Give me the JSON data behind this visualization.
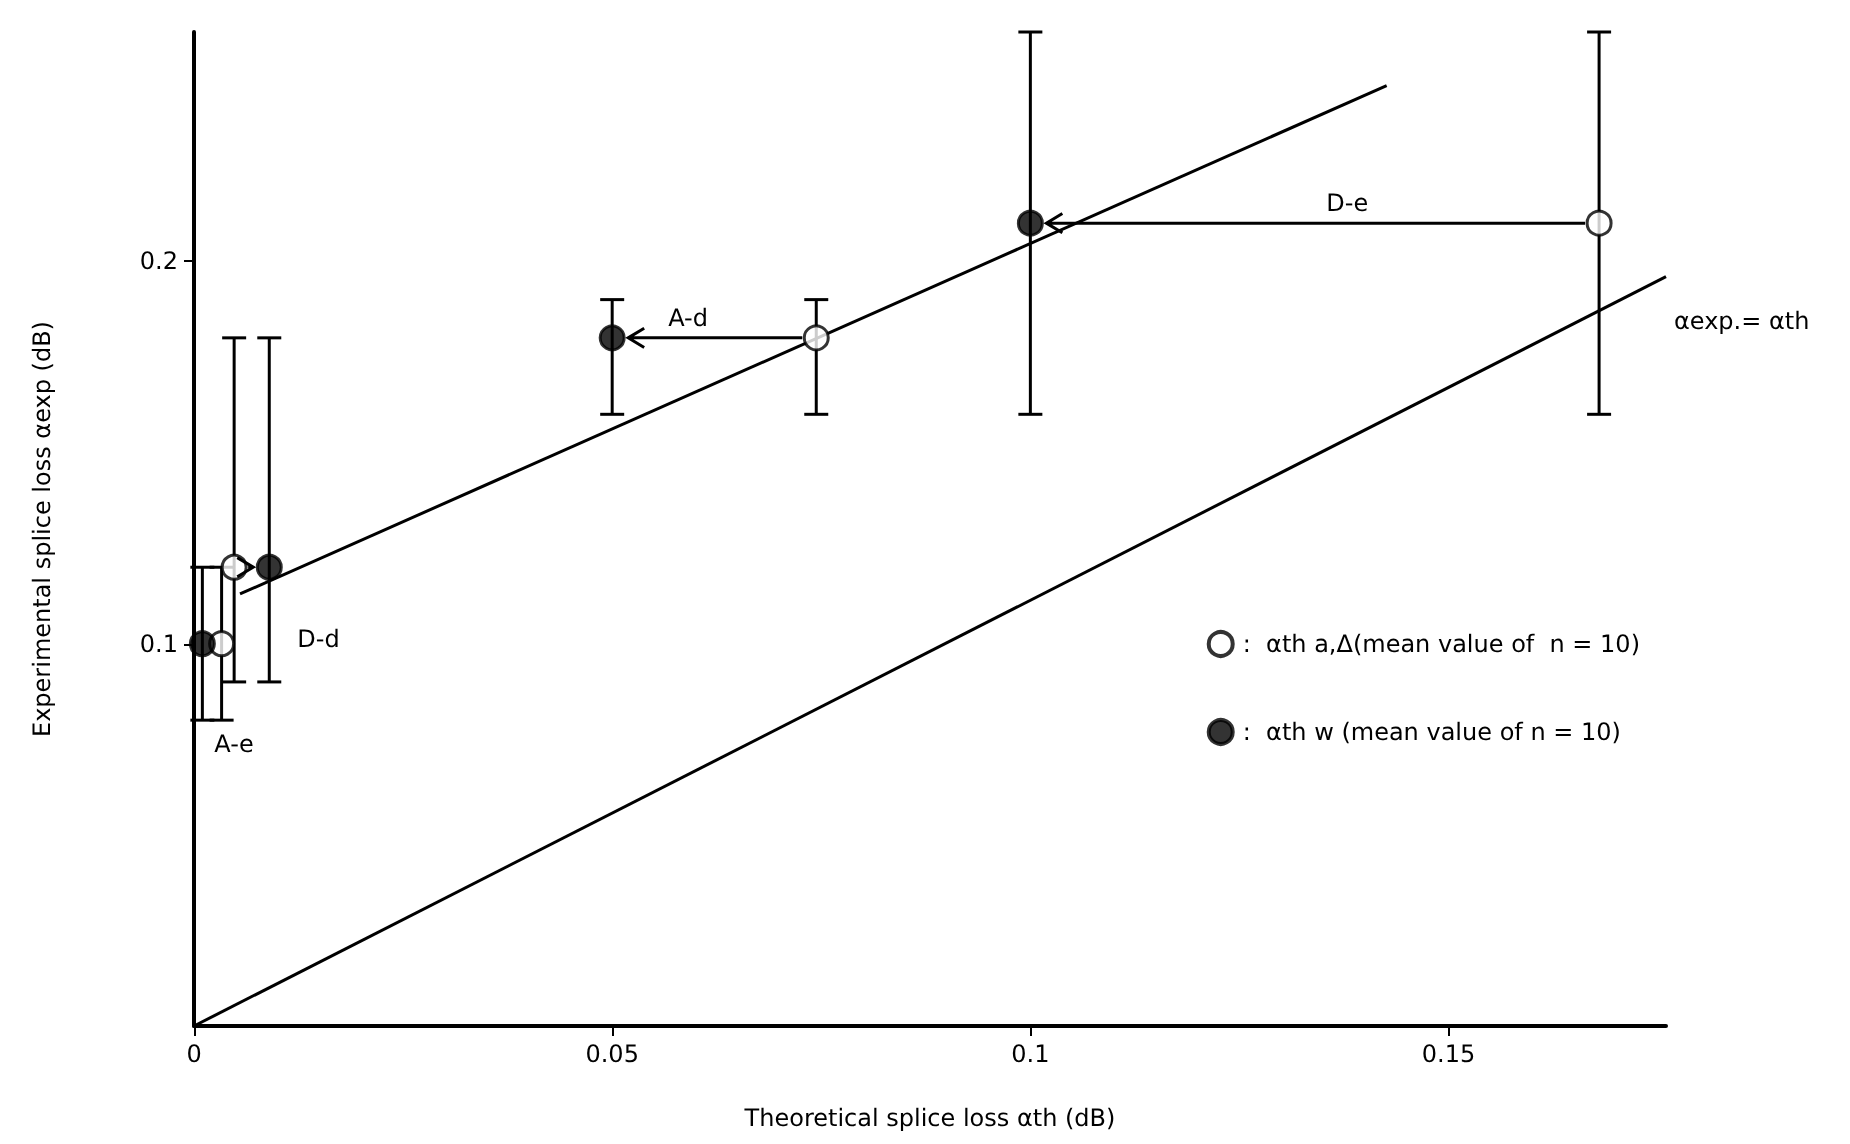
{
  "chart_data": {
    "type": "scatter",
    "xlabel": "Theoretical splice loss αth (dB)",
    "ylabel": "Experimental splice loss αexp (dB)",
    "xlim": [
      0,
      0.176
    ],
    "xticks": [
      0,
      0.05,
      0.1,
      0.15
    ],
    "ylim": [
      0,
      0.26
    ],
    "yticks": [
      0.1,
      0.2
    ],
    "grid": false,
    "legend": "right",
    "marker": "circle",
    "series": [
      {
        "name": ":  αth a,Δ(mean value of  n = 10)",
        "color": "#ffffff",
        "x": [
          0.0033,
          0.0048,
          0.0744,
          0.168
        ],
        "values": [
          0.1,
          0.12,
          0.18,
          0.21
        ],
        "errors": [
          [
            0.08,
            0.12
          ],
          [
            0.09,
            0.18
          ],
          [
            0.16,
            0.19
          ],
          [
            0.16,
            0.26
          ]
        ]
      },
      {
        "name": ":  αth w (mean value of n = 10)",
        "color": "#000000",
        "x": [
          0.001,
          0.009,
          0.05,
          0.1
        ],
        "values": [
          0.1,
          0.12,
          0.18,
          0.21
        ],
        "errors": [
          [
            0.08,
            0.12
          ],
          [
            0.09,
            0.18
          ],
          [
            0.16,
            0.19
          ],
          [
            0.16,
            0.26
          ]
        ]
      },
      {
        "type": "line",
        "color": "#000000",
        "marker": "none",
        "x": [
          0.0055,
          0.1426
        ],
        "values": [
          0.113,
          0.246
        ]
      },
      {
        "type": "line",
        "color": "#000000",
        "marker": "none",
        "x": [
          0,
          0.176
        ],
        "values": [
          0,
          0.196
        ]
      }
    ],
    "annotations": [
      "A-e",
      {
        "text": "D-d",
        "x": 0.009,
        "y": 0.12
      },
      {
        "text": "A-d",
        "x": 0.05,
        "y": 0.18
      },
      "D-e",
      {
        "text": "αexp.= αth",
        "x": 0.176,
        "y": 0.196
      }
    ]
  }
}
